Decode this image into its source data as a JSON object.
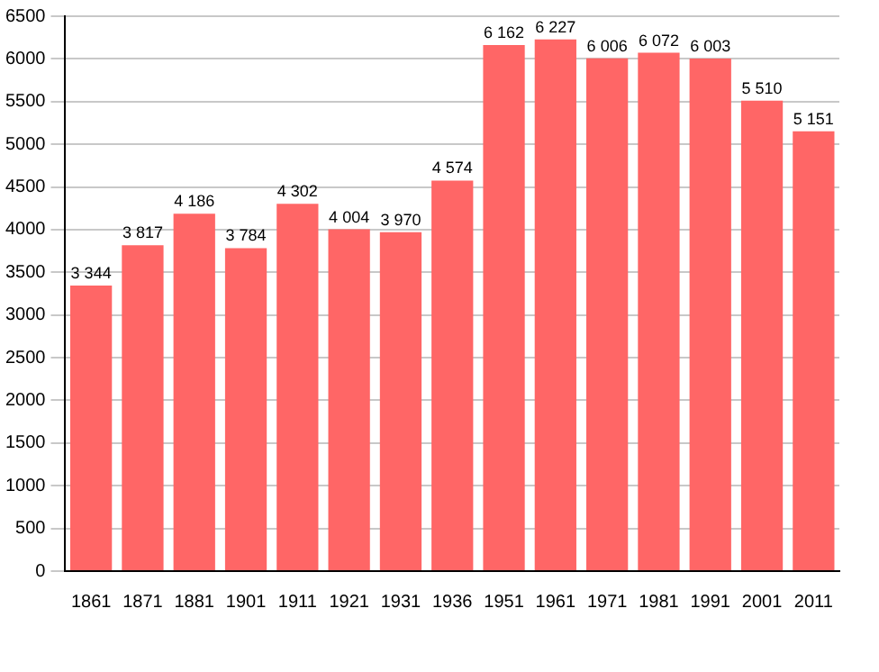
{
  "chart_data": {
    "type": "bar",
    "categories": [
      "1861",
      "1871",
      "1881",
      "1901",
      "1911",
      "1921",
      "1931",
      "1936",
      "1951",
      "1961",
      "1971",
      "1981",
      "1991",
      "2001",
      "2011"
    ],
    "values": [
      3344,
      3817,
      4186,
      3784,
      4302,
      4004,
      3970,
      4574,
      6162,
      6227,
      6006,
      6072,
      6003,
      5510,
      5151
    ],
    "value_labels": [
      "3 344",
      "3 817",
      "4 186",
      "3 784",
      "4 302",
      "4 004",
      "3 970",
      "4 574",
      "6 162",
      "6 227",
      "6 006",
      "6 072",
      "6 003",
      "5 510",
      "5 151"
    ],
    "color": "#ff6666",
    "ylim": [
      0,
      6500
    ],
    "yticks": [
      0,
      500,
      1000,
      1500,
      2000,
      2500,
      3000,
      3500,
      4000,
      4500,
      5000,
      5500,
      6000,
      6500
    ],
    "grid": "y",
    "legend": false
  }
}
